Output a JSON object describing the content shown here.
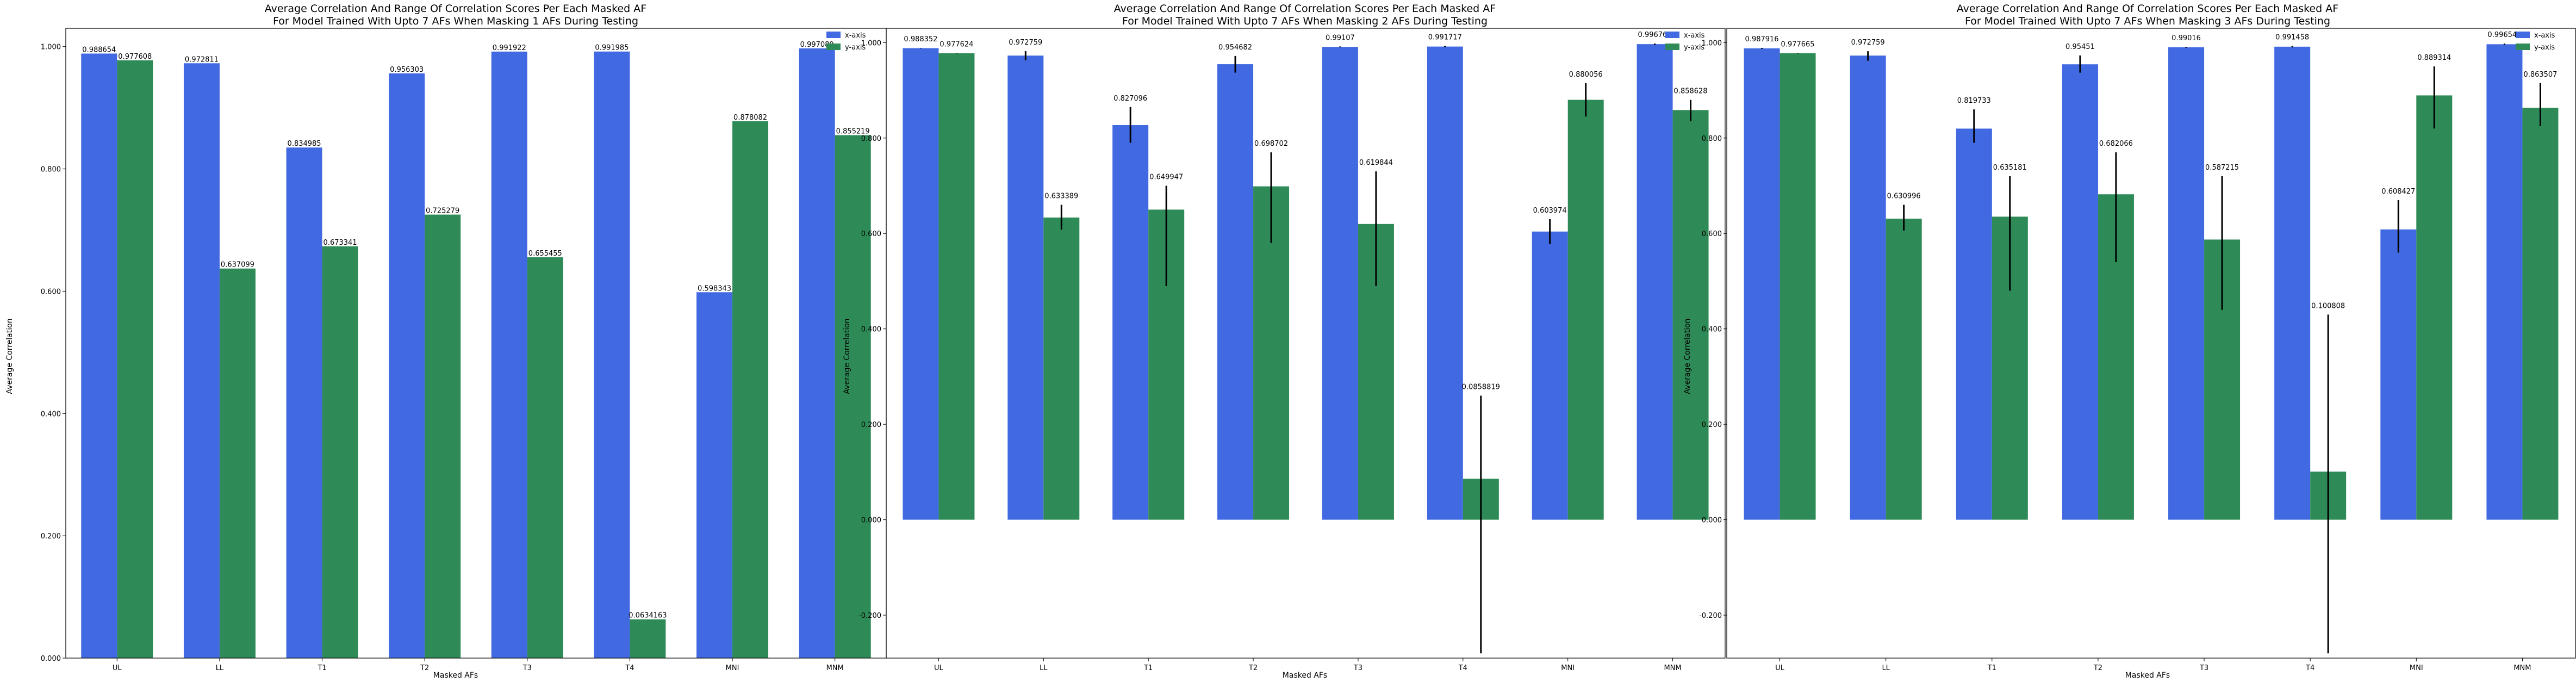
{
  "colors": {
    "x_series": "#4169e1",
    "y_series": "#2e8b57",
    "error_bar": "#000000"
  },
  "chart_data": [
    {
      "type": "bar",
      "title": "Average Correlation And Range Of Correlation Scores Per Each Masked AF",
      "subtitle": "For Model Trained With Upto 7 AFs When Masking 1 AFs During Testing",
      "xlabel": "Masked AFs",
      "ylabel": "Average Correlation",
      "ylim": [
        0,
        1.03
      ],
      "yticks": [
        "0.000",
        "0.200",
        "0.400",
        "0.600",
        "0.800",
        "1.000"
      ],
      "categories": [
        "UL",
        "LL",
        "T1",
        "T2",
        "T3",
        "T4",
        "MNI",
        "MNM"
      ],
      "legend_position": "top-right",
      "series": [
        {
          "name": "x-axis",
          "values": [
            0.988654,
            0.972811,
            0.834985,
            0.956303,
            0.991922,
            0.991985,
            0.598343,
            0.997089
          ],
          "labels": [
            "0.988654",
            "0.972811",
            "0.834985",
            "0.956303",
            "0.991922",
            "0.991985",
            "0.598343",
            "0.997089"
          ]
        },
        {
          "name": "y-axis",
          "values": [
            0.977608,
            0.637099,
            0.673341,
            0.725279,
            0.655455,
            0.0634163,
            0.878082,
            0.855219
          ],
          "labels": [
            "0.977608",
            "0.637099",
            "0.673341",
            "0.725279",
            "0.655455",
            "0.0634163",
            "0.878082",
            "0.855219"
          ]
        }
      ]
    },
    {
      "type": "bar",
      "title": "Average Correlation And Range Of Correlation Scores Per Each Masked AF",
      "subtitle": "For Model Trained With Upto 7 AFs When Masking 2 AFs During Testing",
      "xlabel": "Masked AFs",
      "ylabel": "Average Correlation",
      "ylim": [
        -0.29,
        1.03
      ],
      "yticks": [
        "-0.200",
        "0.000",
        "0.200",
        "0.400",
        "0.600",
        "0.800",
        "1.000"
      ],
      "categories": [
        "UL",
        "LL",
        "T1",
        "T2",
        "T3",
        "T4",
        "MNI",
        "MNM"
      ],
      "legend_position": "top-right",
      "series": [
        {
          "name": "x-axis",
          "values": [
            0.988352,
            0.972759,
            0.827096,
            0.954682,
            0.99107,
            0.991717,
            0.603974,
            0.996766
          ],
          "labels": [
            "0.988352",
            "0.972759",
            "0.827096",
            "0.954682",
            "0.99107",
            "0.991717",
            "0.603974",
            "0.996766"
          ],
          "ranges": [
            [
              0.988,
              0.989
            ],
            [
              0.963,
              0.982
            ],
            [
              0.79,
              0.865
            ],
            [
              0.937,
              0.972
            ],
            [
              0.99,
              0.992
            ],
            [
              0.99,
              0.993
            ],
            [
              0.578,
              0.63
            ],
            [
              0.995,
              0.998
            ]
          ]
        },
        {
          "name": "y-axis",
          "values": [
            0.977624,
            0.633389,
            0.649947,
            0.698702,
            0.619844,
            0.0858819,
            0.880056,
            0.858628
          ],
          "labels": [
            "0.977624",
            "0.633389",
            "0.649947",
            "0.698702",
            "0.619844",
            "0.0858819",
            "0.880056",
            "0.858628"
          ],
          "ranges": [
            [
              0.977,
              0.978
            ],
            [
              0.608,
              0.66
            ],
            [
              0.49,
              0.7
            ],
            [
              0.58,
              0.77
            ],
            [
              0.49,
              0.73
            ],
            [
              -0.28,
              0.26
            ],
            [
              0.845,
              0.915
            ],
            [
              0.835,
              0.88
            ]
          ]
        }
      ]
    },
    {
      "type": "bar",
      "title": "Average Correlation And Range Of Correlation Scores Per Each Masked AF",
      "subtitle": "For Model Trained With Upto 7 AFs When Masking 3 AFs During Testing",
      "xlabel": "Masked AFs",
      "ylabel": "Average Correlation",
      "ylim": [
        -0.29,
        1.03
      ],
      "yticks": [
        "-0.200",
        "0.000",
        "0.200",
        "0.400",
        "0.600",
        "0.800",
        "1.000"
      ],
      "categories": [
        "UL",
        "LL",
        "T1",
        "T2",
        "T3",
        "T4",
        "MNI",
        "MNM"
      ],
      "legend_position": "top-right",
      "series": [
        {
          "name": "x-axis",
          "values": [
            0.987916,
            0.972759,
            0.819733,
            0.95451,
            0.99016,
            0.991458,
            0.608427,
            0.996545
          ],
          "labels": [
            "0.987916",
            "0.972759",
            "0.819733",
            "0.95451",
            "0.99016",
            "0.991458",
            "0.608427",
            "0.996545"
          ],
          "ranges": [
            [
              0.987,
              0.989
            ],
            [
              0.962,
              0.982
            ],
            [
              0.79,
              0.86
            ],
            [
              0.937,
              0.973
            ],
            [
              0.989,
              0.991
            ],
            [
              0.99,
              0.993
            ],
            [
              0.56,
              0.67
            ],
            [
              0.995,
              0.998
            ]
          ]
        },
        {
          "name": "y-axis",
          "values": [
            0.977665,
            0.630996,
            0.635181,
            0.682066,
            0.587215,
            0.100808,
            0.889314,
            0.863507
          ],
          "labels": [
            "0.977665",
            "0.630996",
            "0.635181",
            "0.682066",
            "0.587215",
            "0.100808",
            "0.889314",
            "0.863507"
          ],
          "ranges": [
            [
              0.977,
              0.978
            ],
            [
              0.606,
              0.66
            ],
            [
              0.48,
              0.72
            ],
            [
              0.54,
              0.77
            ],
            [
              0.44,
              0.72
            ],
            [
              -0.28,
              0.43
            ],
            [
              0.82,
              0.95
            ],
            [
              0.825,
              0.915
            ]
          ]
        }
      ]
    }
  ]
}
